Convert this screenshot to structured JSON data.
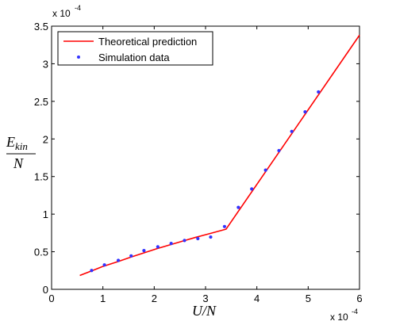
{
  "chart_data": {
    "type": "line",
    "title": "",
    "xlabel": "U/N",
    "ylabel": {
      "numerator": "E",
      "subscript": "kin",
      "denominator": "N"
    },
    "x_multiplier": "x 10",
    "x_multiplier_exp": "-4",
    "y_multiplier": "x 10",
    "y_multiplier_exp": "-4",
    "xlim": [
      0,
      6
    ],
    "ylim": [
      0,
      3.5
    ],
    "xticks": [
      0,
      1,
      2,
      3,
      4,
      5,
      6
    ],
    "xtick_labels": [
      "0",
      "1",
      "2",
      "3",
      "4",
      "5",
      "6"
    ],
    "yticks": [
      0,
      0.5,
      1,
      1.5,
      2,
      2.5,
      3,
      3.5
    ],
    "ytick_labels": [
      "0",
      "0.5",
      "1",
      "1.5",
      "2",
      "2.5",
      "3",
      "3.5"
    ],
    "grid": false,
    "legend_position": "top-left",
    "series": [
      {
        "name": "Theoretical prediction",
        "kind": "line",
        "color": "#ff0000",
        "x": [
          0.55,
          0.8,
          1.0,
          1.3,
          1.55,
          1.8,
          2.05,
          2.3,
          2.55,
          2.8,
          3.05,
          3.4,
          6.0
        ],
        "y": [
          0.185,
          0.25,
          0.305,
          0.37,
          0.43,
          0.485,
          0.54,
          0.59,
          0.64,
          0.69,
          0.735,
          0.8,
          3.38
        ]
      },
      {
        "name": "Simulation data",
        "kind": "scatter",
        "color": "#3333ff",
        "x": [
          0.78,
          1.03,
          1.3,
          1.55,
          1.8,
          2.07,
          2.33,
          2.59,
          2.85,
          3.1,
          3.37,
          3.64,
          3.9,
          4.17,
          4.43,
          4.68,
          4.94,
          5.2
        ],
        "y": [
          0.25,
          0.325,
          0.385,
          0.445,
          0.515,
          0.565,
          0.61,
          0.65,
          0.675,
          0.695,
          0.835,
          1.09,
          1.335,
          1.585,
          1.845,
          2.1,
          2.36,
          2.625
        ]
      }
    ]
  }
}
